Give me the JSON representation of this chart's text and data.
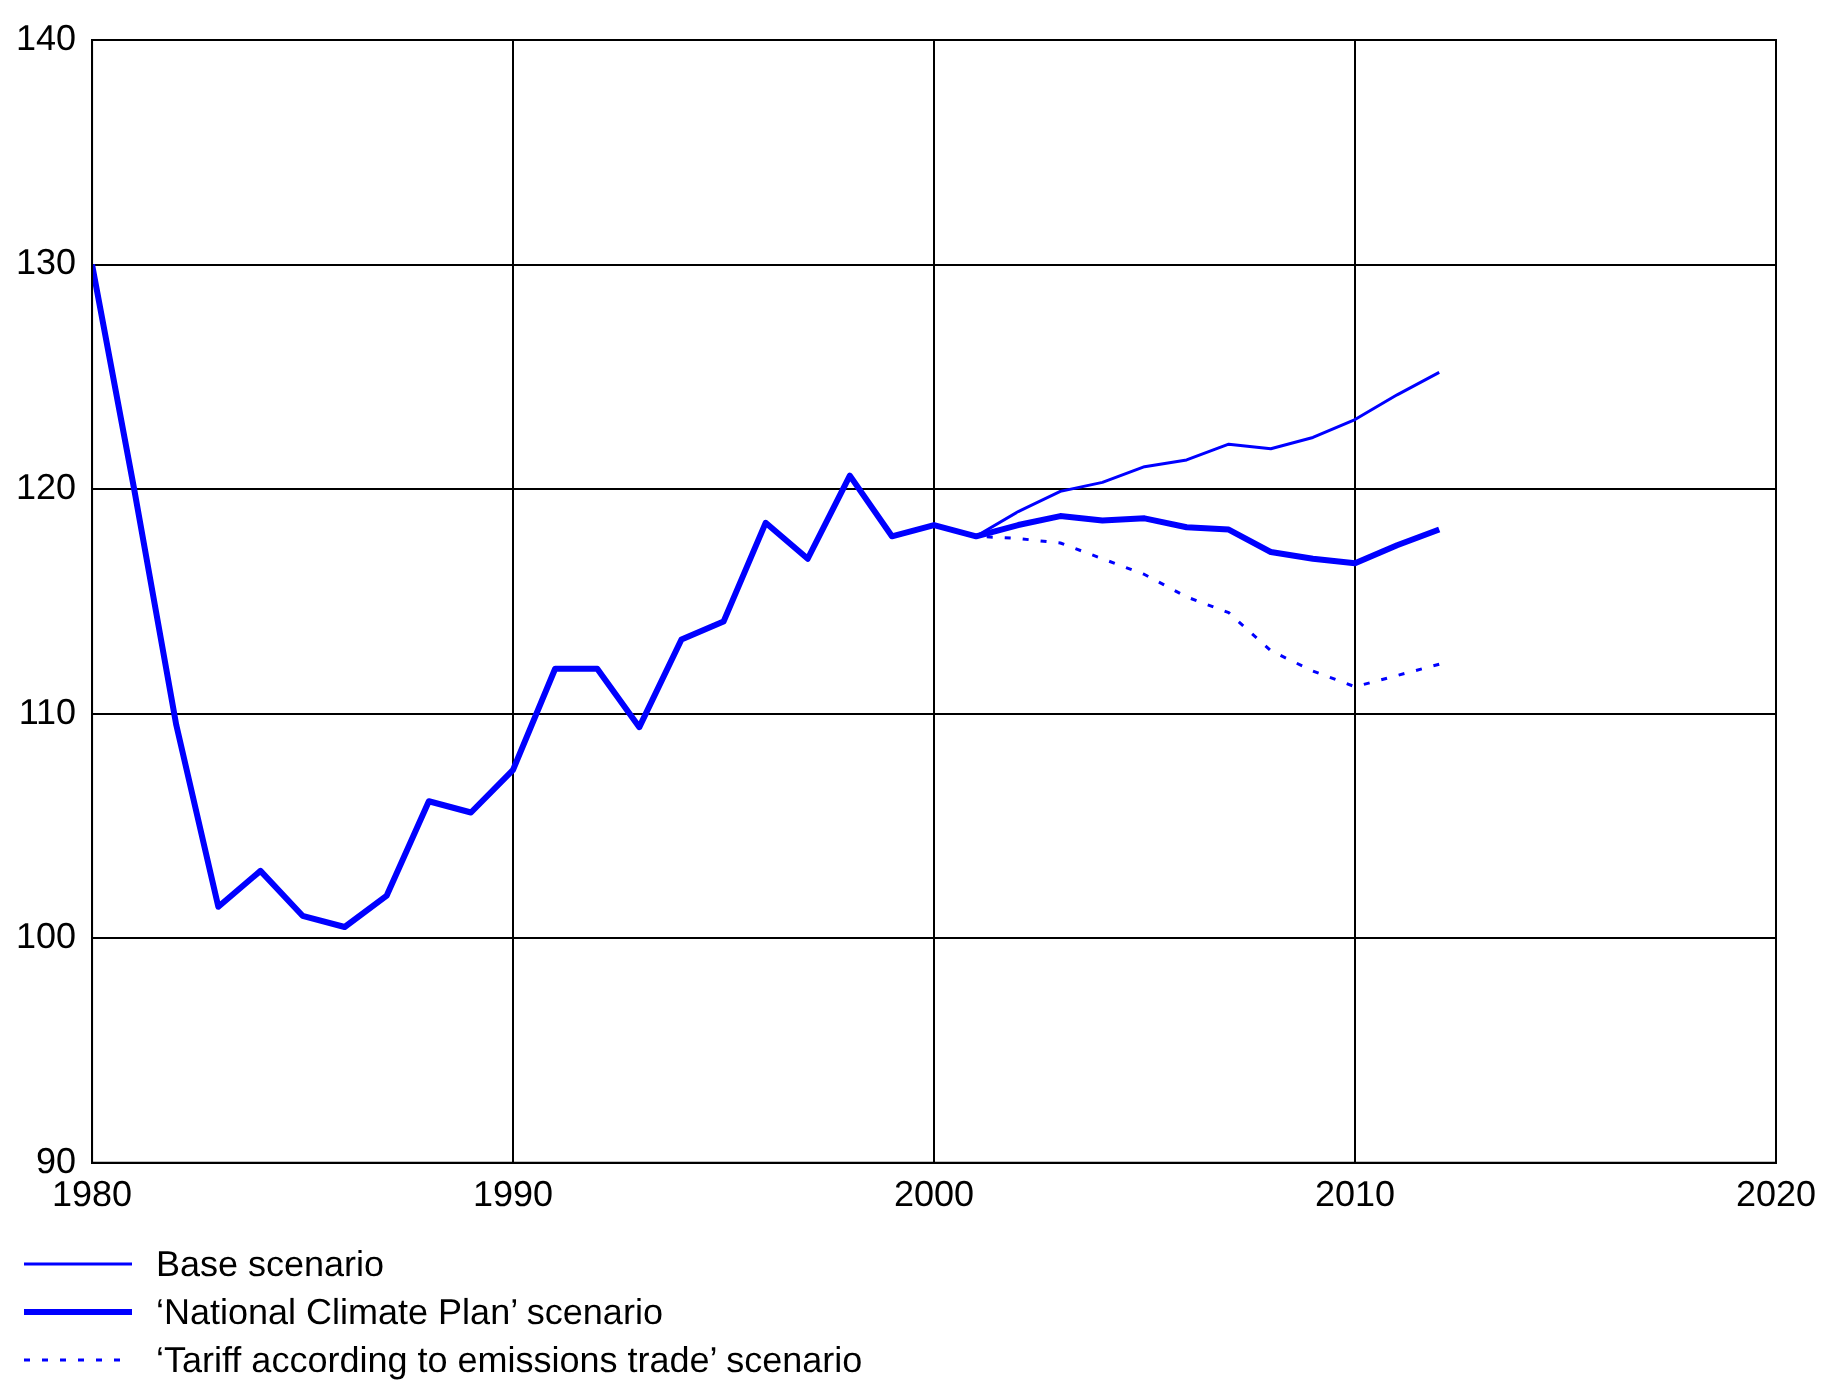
{
  "chart_data": {
    "type": "line",
    "xlim": [
      1980,
      2020
    ],
    "xticks": [
      1980,
      1990,
      2000,
      2010,
      2020
    ],
    "ylim": [
      90,
      140
    ],
    "yticks": [
      90,
      100,
      110,
      120,
      130,
      140
    ],
    "grid": true,
    "legend": "bottom left",
    "marker": "none",
    "series": [
      {
        "name": "Base scenario",
        "color": "#0000ff",
        "line_style": "solid",
        "x": [
          2001,
          2002,
          2003,
          2004,
          2005,
          2006,
          2007,
          2008,
          2009,
          2010,
          2011,
          2012
        ],
        "values": [
          117.9,
          119.0,
          119.9,
          120.3,
          121.0,
          121.3,
          122.0,
          121.8,
          122.3,
          123.1,
          124.2,
          125.2
        ]
      },
      {
        "name": "‘National Climate Plan’ scenario",
        "color": "#0000ff",
        "line_style": "solid",
        "x": [
          1980,
          1981,
          1982,
          1983,
          1984,
          1985,
          1986,
          1987,
          1988,
          1989,
          1990,
          1991,
          1992,
          1993,
          1994,
          1995,
          1996,
          1997,
          1998,
          1999,
          2000,
          2001,
          2002,
          2003,
          2004,
          2005,
          2006,
          2007,
          2008,
          2009,
          2010,
          2011,
          2012
        ],
        "values": [
          130,
          120,
          109.5,
          101.4,
          103.0,
          101.0,
          100.5,
          101.9,
          106.1,
          105.6,
          107.5,
          112.0,
          112.0,
          109.4,
          113.3,
          114.1,
          118.5,
          116.9,
          120.6,
          117.9,
          118.4,
          117.9,
          118.4,
          118.8,
          118.6,
          118.7,
          118.3,
          118.2,
          117.2,
          116.9,
          116.7,
          117.5,
          118.2
        ]
      },
      {
        "name": "‘Tariff according to emissions trade’ scenario",
        "color": "#0000ff",
        "line_style": "dotted",
        "x": [
          2001,
          2002,
          2003,
          2004,
          2005,
          2006,
          2007,
          2008,
          2009,
          2010,
          2011,
          2012
        ],
        "values": [
          117.9,
          117.8,
          117.6,
          116.9,
          116.2,
          115.2,
          114.5,
          112.8,
          111.9,
          111.2,
          111.7,
          112.2
        ]
      }
    ]
  }
}
